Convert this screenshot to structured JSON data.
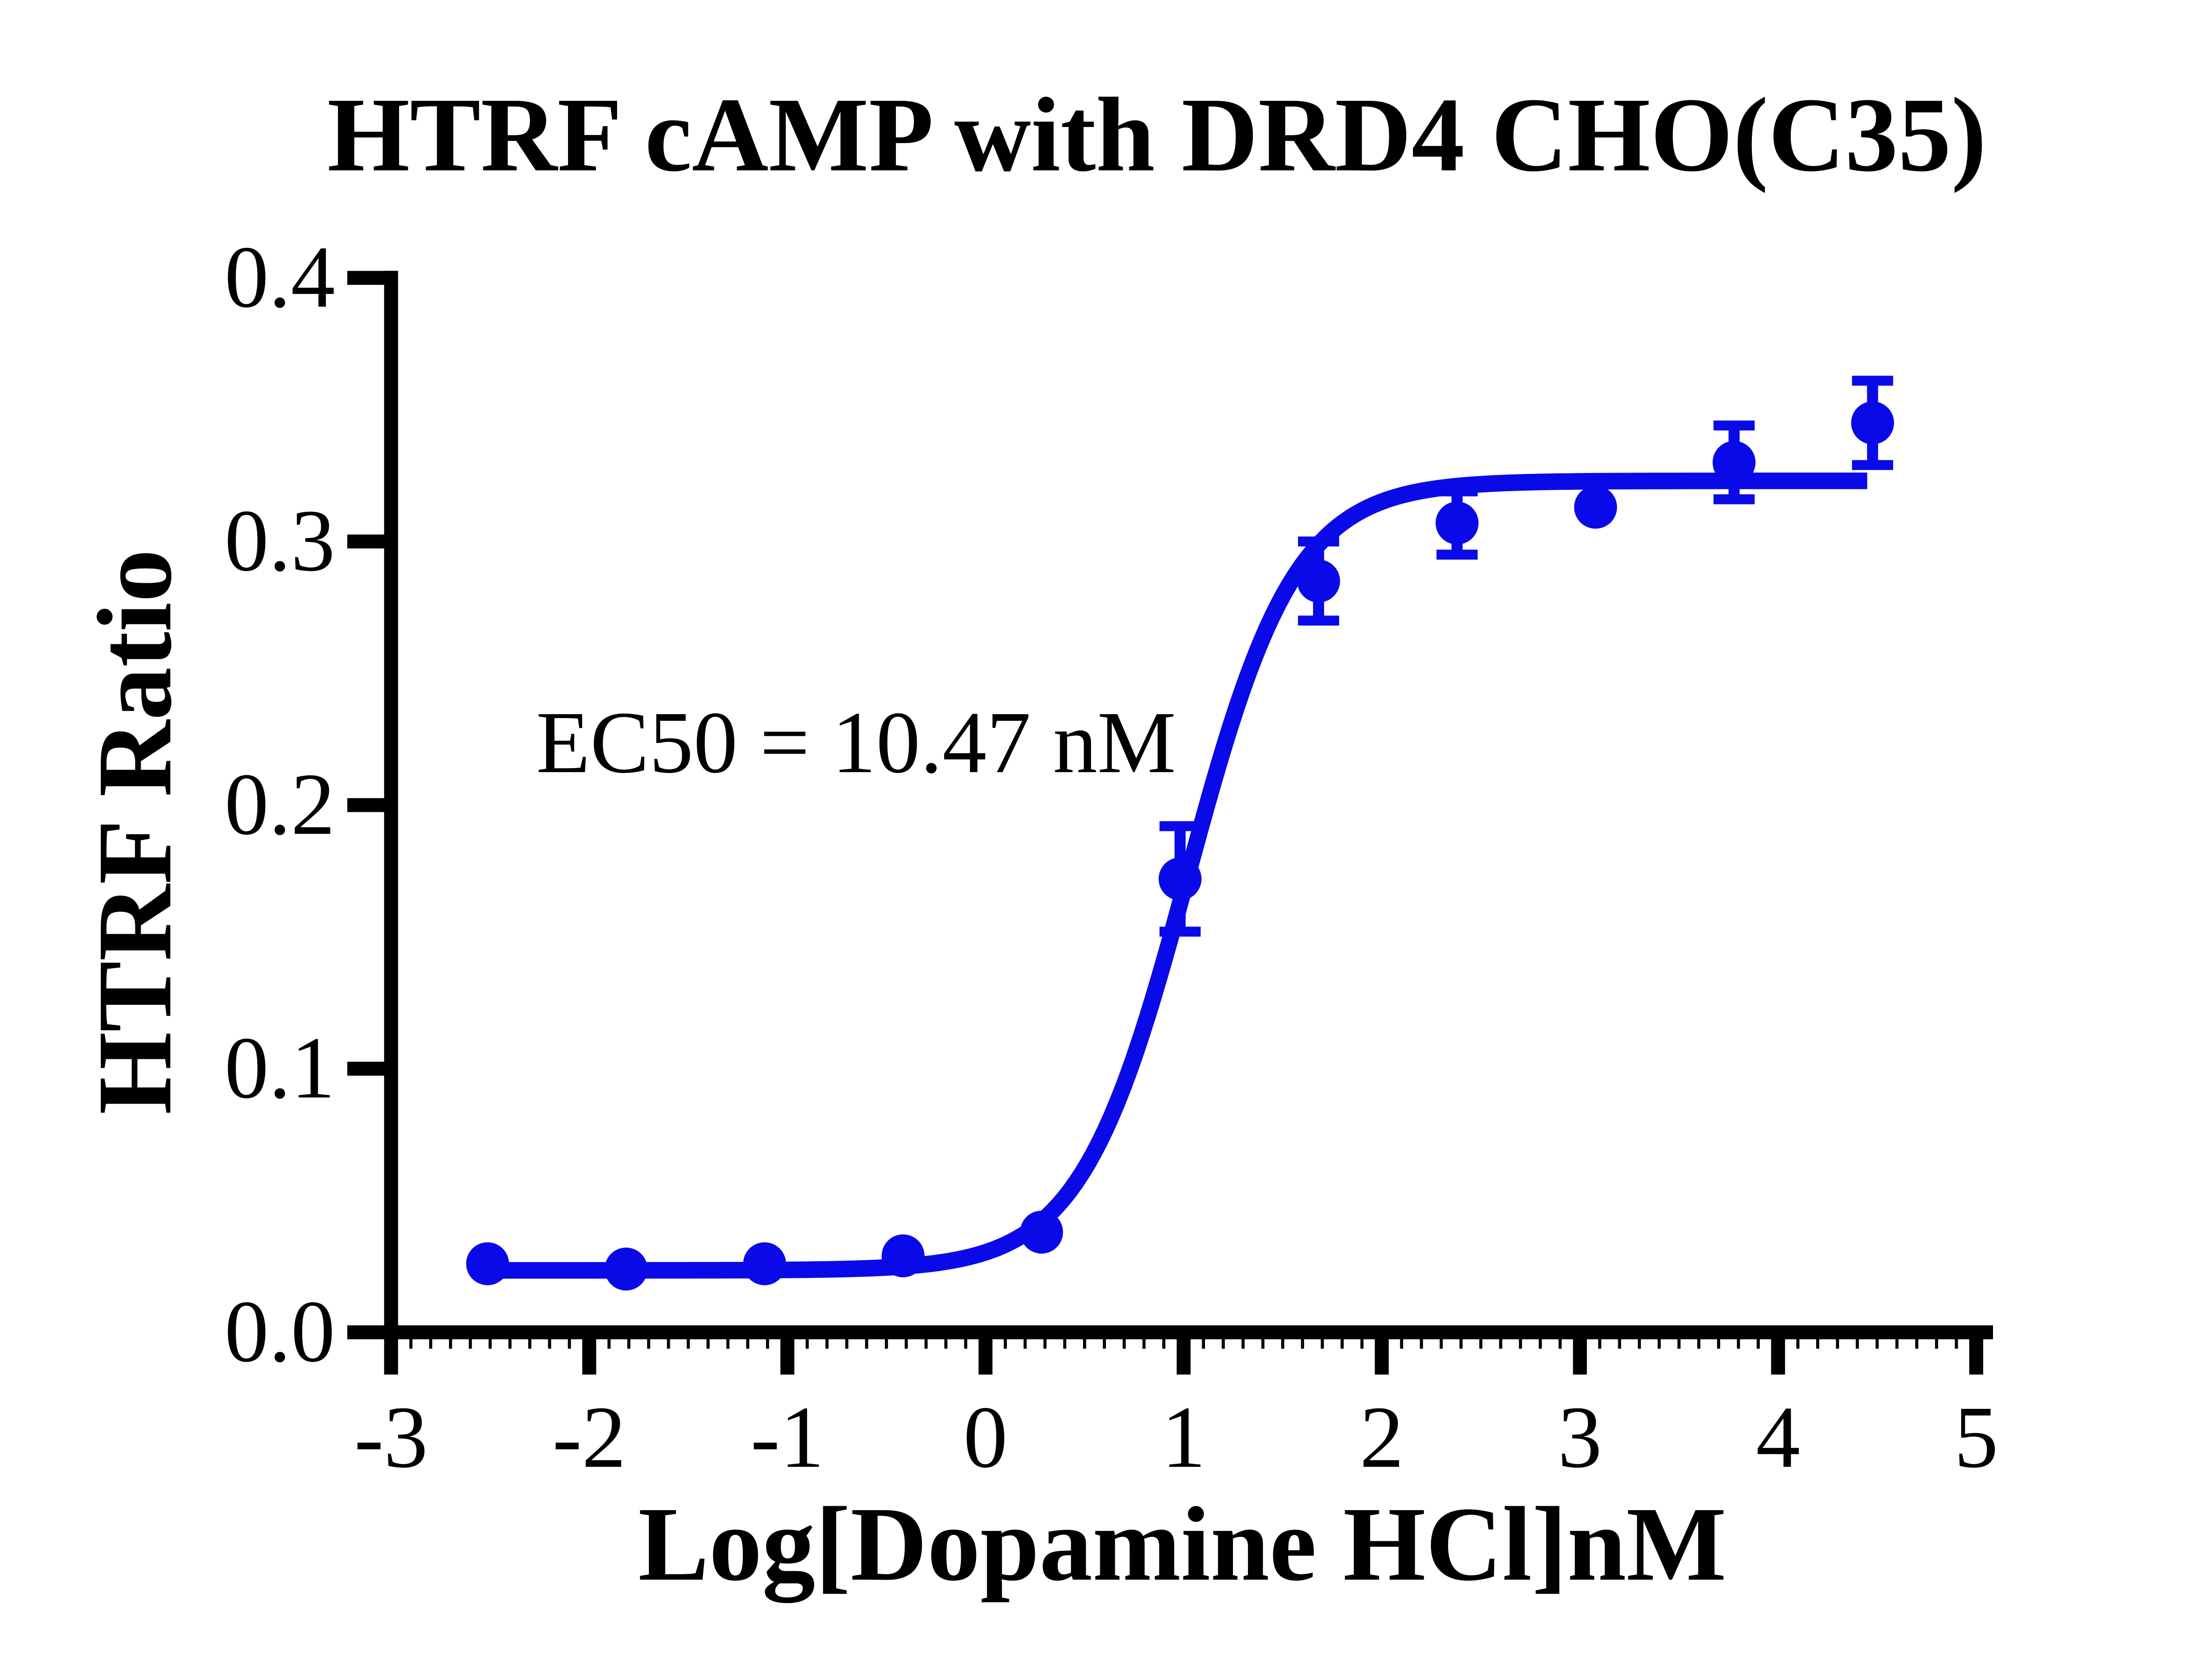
{
  "figure": {
    "background": "#ffffff"
  },
  "chart_data": {
    "type": "scatter",
    "subtype": "dose-response (log agonist vs response, sigmoidal fit)",
    "title": "HTRF cAMP with DRD4 CHO(C35)",
    "xlabel": "Log[Dopamine HCl]nM",
    "ylabel": "HTRF Ratio",
    "annotation": "EC50 = 10.47 nM",
    "ec50_nM": 10.47,
    "xlim": [
      -3,
      5
    ],
    "ylim": [
      0,
      0.4
    ],
    "grid": false,
    "legend": "none",
    "axis_color": "#000000",
    "x_ticks": [
      -3,
      -2,
      -1,
      0,
      1,
      2,
      3,
      4,
      5
    ],
    "x_tick_labels": [
      "-3",
      "-2",
      "-1",
      "0",
      "1",
      "2",
      "3",
      "4",
      "5"
    ],
    "y_ticks": [
      0,
      0.1,
      0.2,
      0.3,
      0.4
    ],
    "y_tick_labels": [
      "0.0",
      "0.1",
      "0.2",
      "0.3",
      "0.4"
    ],
    "x_minor_tick_step": 0.1,
    "series": [
      {
        "color": "#0a0ae8",
        "marker": "circle",
        "points": [
          {
            "x": -2.513,
            "y": 0.026,
            "err": null
          },
          {
            "x": -1.814,
            "y": 0.024,
            "err": null
          },
          {
            "x": -1.115,
            "y": 0.026,
            "err": null
          },
          {
            "x": -0.416,
            "y": 0.029,
            "err": null
          },
          {
            "x": 0.283,
            "y": 0.038,
            "err": null
          },
          {
            "x": 0.982,
            "y": 0.172,
            "err": 0.02
          },
          {
            "x": 1.681,
            "y": 0.285,
            "err": 0.015
          },
          {
            "x": 2.38,
            "y": 0.307,
            "err": 0.012
          },
          {
            "x": 3.079,
            "y": 0.313,
            "err": null
          },
          {
            "x": 3.778,
            "y": 0.33,
            "err": 0.014
          },
          {
            "x": 4.477,
            "y": 0.345,
            "err": 0.016
          }
        ]
      }
    ],
    "fit_curve": {
      "model": "sigmoidal 4PL",
      "bottom": 0.0235,
      "top": 0.323,
      "log_ec50": 1.02,
      "hill_slope": 1.6,
      "x_start": -2.513,
      "x_end": 4.45
    }
  }
}
